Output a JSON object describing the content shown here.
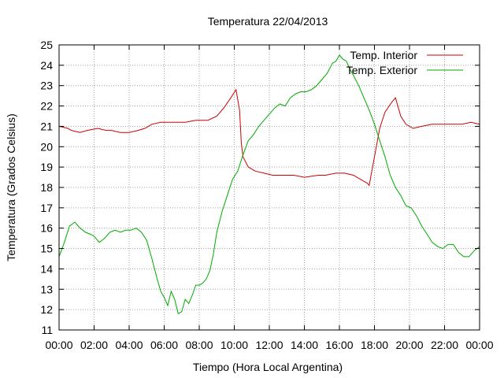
{
  "chart_data": {
    "type": "line",
    "title": "Temperatura 22/04/2013",
    "xlabel": "Tiempo (Hora Local Argentina)",
    "ylabel": "Temperatura (Grados Celsius)",
    "xlim": [
      0,
      24
    ],
    "ylim": [
      11,
      25
    ],
    "x_ticks": [
      0,
      2,
      4,
      6,
      8,
      10,
      12,
      14,
      16,
      18,
      20,
      22,
      24
    ],
    "x_tick_labels": [
      "00:00",
      "02:00",
      "04:00",
      "06:00",
      "08:00",
      "10:00",
      "12:00",
      "14:00",
      "16:00",
      "18:00",
      "20:00",
      "22:00",
      "00:00"
    ],
    "y_ticks": [
      11,
      12,
      13,
      14,
      15,
      16,
      17,
      18,
      19,
      20,
      21,
      22,
      23,
      24,
      25
    ],
    "y_tick_labels": [
      "11",
      "12",
      "13",
      "14",
      "15",
      "16",
      "17",
      "18",
      "19",
      "20",
      "21",
      "22",
      "23",
      "24",
      "25"
    ],
    "grid": true,
    "legend_position": "top-right",
    "series": [
      {
        "name": "Temp. Interior",
        "color": "#cc0000",
        "x": [
          0,
          0.5,
          0.7,
          1.2,
          1.6,
          2.2,
          2.7,
          3.0,
          3.5,
          4.0,
          4.5,
          4.9,
          5.3,
          5.8,
          6.5,
          7.2,
          7.8,
          8.5,
          9.0,
          9.4,
          9.8,
          10.1,
          10.3,
          10.4,
          10.5,
          10.8,
          11.2,
          11.7,
          12.2,
          12.8,
          13.4,
          14.0,
          14.8,
          15.2,
          15.8,
          16.3,
          16.8,
          17.2,
          17.6,
          17.7,
          18.0,
          18.3,
          18.6,
          19.0,
          19.2,
          19.5,
          19.8,
          20.2,
          20.7,
          21.3,
          21.8,
          22.4,
          23.0,
          23.5,
          24.0
        ],
        "y": [
          21.0,
          20.9,
          20.8,
          20.7,
          20.8,
          20.9,
          20.8,
          20.8,
          20.7,
          20.7,
          20.8,
          20.9,
          21.1,
          21.2,
          21.2,
          21.2,
          21.3,
          21.3,
          21.5,
          21.9,
          22.4,
          22.8,
          21.8,
          20.2,
          19.5,
          19.0,
          18.8,
          18.7,
          18.6,
          18.6,
          18.6,
          18.5,
          18.6,
          18.6,
          18.7,
          18.7,
          18.6,
          18.4,
          18.2,
          18.1,
          19.5,
          20.9,
          21.7,
          22.2,
          22.4,
          21.5,
          21.1,
          20.9,
          21.0,
          21.1,
          21.1,
          21.1,
          21.1,
          21.2,
          21.1
        ]
      },
      {
        "name": "Temp. Exterior",
        "color": "#00aa00",
        "x": [
          0,
          0.3,
          0.6,
          0.9,
          1.2,
          1.5,
          1.8,
          2.0,
          2.3,
          2.6,
          2.9,
          3.2,
          3.5,
          3.8,
          4.1,
          4.4,
          4.7,
          5.0,
          5.3,
          5.6,
          5.8,
          6.0,
          6.1,
          6.2,
          6.4,
          6.6,
          6.8,
          7.0,
          7.2,
          7.4,
          7.6,
          7.8,
          8.0,
          8.2,
          8.4,
          8.6,
          8.8,
          9.0,
          9.3,
          9.6,
          9.9,
          10.2,
          10.5,
          10.8,
          11.1,
          11.4,
          11.7,
          12.0,
          12.3,
          12.6,
          12.9,
          13.2,
          13.5,
          13.8,
          14.1,
          14.4,
          14.7,
          15.0,
          15.3,
          15.6,
          15.8,
          16.0,
          16.2,
          16.4,
          16.6,
          16.8,
          17.1,
          17.4,
          17.7,
          18.0,
          18.3,
          18.6,
          18.9,
          19.2,
          19.5,
          19.8,
          20.1,
          20.4,
          20.7,
          21.0,
          21.3,
          21.6,
          21.9,
          22.2,
          22.5,
          22.8,
          23.1,
          23.4,
          23.7,
          24.0
        ],
        "y": [
          14.6,
          15.3,
          16.1,
          16.3,
          16.0,
          15.8,
          15.7,
          15.6,
          15.3,
          15.5,
          15.8,
          15.9,
          15.8,
          15.9,
          15.9,
          16.0,
          15.8,
          15.4,
          14.5,
          13.5,
          12.9,
          12.6,
          12.4,
          12.2,
          12.9,
          12.5,
          11.8,
          11.9,
          12.5,
          12.3,
          12.7,
          13.2,
          13.2,
          13.3,
          13.5,
          13.9,
          14.7,
          15.8,
          16.8,
          17.6,
          18.4,
          18.8,
          19.6,
          20.3,
          20.6,
          21.0,
          21.3,
          21.6,
          21.9,
          22.1,
          22.0,
          22.4,
          22.6,
          22.7,
          22.7,
          22.8,
          23.0,
          23.3,
          23.6,
          24.1,
          24.2,
          24.5,
          24.3,
          24.2,
          23.8,
          23.5,
          23.0,
          22.4,
          21.8,
          21.1,
          20.3,
          19.5,
          18.6,
          18.0,
          17.6,
          17.1,
          17.0,
          16.6,
          16.1,
          15.7,
          15.3,
          15.1,
          15.0,
          15.2,
          15.2,
          14.8,
          14.6,
          14.6,
          14.9,
          15.1
        ]
      }
    ]
  }
}
